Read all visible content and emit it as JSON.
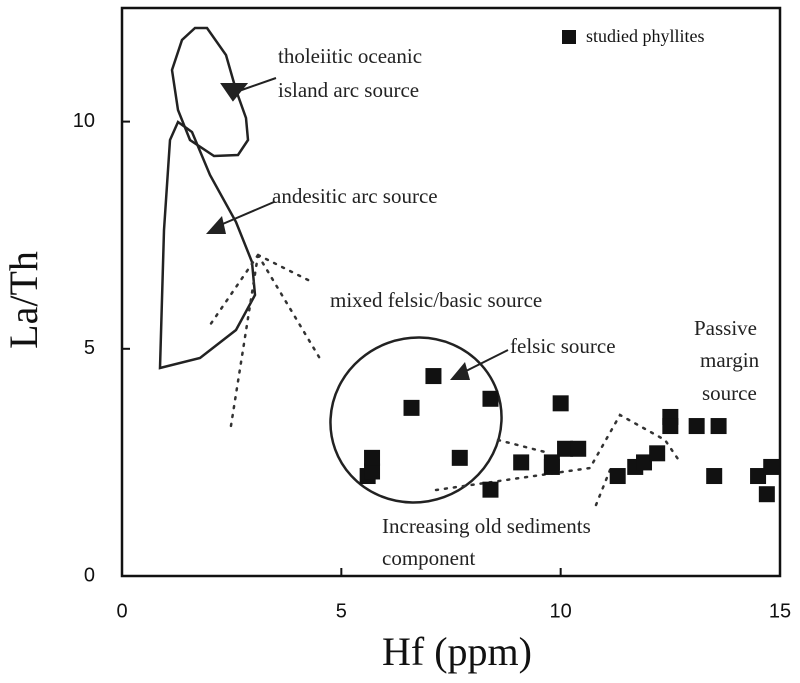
{
  "chart_data": {
    "type": "scatter",
    "x_label": "Hf (ppm)",
    "y_label": "La/Th",
    "xlim": [
      0,
      15
    ],
    "ylim": [
      0,
      12.5
    ],
    "xticks": [
      0,
      5,
      10,
      15
    ],
    "yticks": [
      0,
      5,
      10
    ],
    "x": [
      5.6,
      5.7,
      5.7,
      6.6,
      7.1,
      7.7,
      8.4,
      8.4,
      9.1,
      9.8,
      9.8,
      10.0,
      10.1,
      10.4,
      11.3,
      11.7,
      11.9,
      12.2,
      12.5,
      12.5,
      13.1,
      13.6,
      13.5,
      14.5,
      14.7,
      14.8
    ],
    "series": [
      {
        "name": "studied phyllites",
        "color": "#111111",
        "values": [
          2.2,
          2.3,
          2.6,
          3.7,
          4.4,
          2.6,
          3.9,
          1.9,
          2.5,
          2.4,
          2.5,
          3.8,
          2.8,
          2.8,
          2.2,
          2.4,
          2.5,
          2.7,
          3.5,
          3.3,
          3.3,
          3.3,
          2.2,
          2.2,
          1.8,
          2.4
        ]
      }
    ],
    "annotations": [
      "tholeiitic oceanic",
      "island arc source",
      "andesitic arc source",
      "mixed felsic/basic source",
      "felsic source",
      "Passive",
      "margin",
      "source",
      "Increasing old sediments",
      "component"
    ]
  }
}
